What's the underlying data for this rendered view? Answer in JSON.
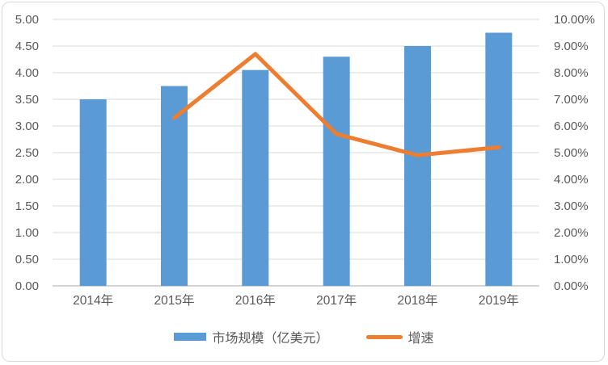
{
  "chart_data": {
    "type": "bar",
    "subtype": "combo-bar-line-dual-axis",
    "title": "",
    "categories": [
      "2014年",
      "2015年",
      "2016年",
      "2017年",
      "2018年",
      "2019年"
    ],
    "series": [
      {
        "name": "市场规模（亿美元）",
        "type": "bar",
        "axis": "left",
        "color": "#5B9BD5",
        "values": [
          3.5,
          3.75,
          4.05,
          4.3,
          4.5,
          4.75
        ]
      },
      {
        "name": "增速",
        "type": "line",
        "axis": "right",
        "color": "#ED7D31",
        "values": [
          null,
          6.3,
          8.7,
          5.7,
          4.9,
          5.2
        ]
      }
    ],
    "left_axis": {
      "min": 0,
      "max": 5,
      "ticks": [
        "0.00",
        "0.50",
        "1.00",
        "1.50",
        "2.00",
        "2.50",
        "3.00",
        "3.50",
        "4.00",
        "4.50",
        "5.00"
      ]
    },
    "right_axis": {
      "min": 0,
      "max": 10,
      "ticks": [
        "0.00%",
        "1.00%",
        "2.00%",
        "3.00%",
        "4.00%",
        "5.00%",
        "6.00%",
        "7.00%",
        "8.00%",
        "9.00%",
        "10.00%"
      ]
    },
    "grid": true,
    "legend_position": "bottom",
    "legend": [
      {
        "label": "市场规模（亿美元）",
        "color": "#5B9BD5",
        "shape": "rect"
      },
      {
        "label": "增速",
        "color": "#ED7D31",
        "shape": "line"
      }
    ]
  },
  "colors": {
    "bar": "#5B9BD5",
    "line": "#ED7D31",
    "grid": "#D9D9D9",
    "axis_line": "#C6C6C6",
    "axis_text": "#595959",
    "border": "#D9D9D9",
    "background": "#FFFFFF"
  }
}
